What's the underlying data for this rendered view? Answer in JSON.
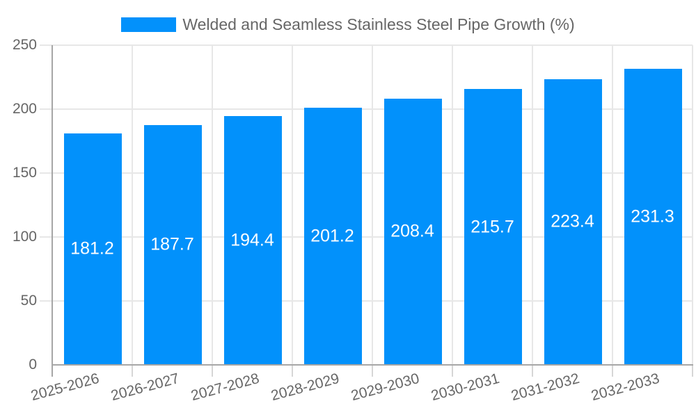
{
  "legend": {
    "label": "Welded and Seamless Stainless Steel Pipe Growth (%)"
  },
  "chart_data": {
    "type": "bar",
    "title": "Welded and Seamless Stainless Steel Pipe Growth (%)",
    "categories": [
      "2025-2026",
      "2026-2027",
      "2027-2028",
      "2028-2029",
      "2029-2030",
      "2030-2031",
      "2031-2032",
      "2032-2033"
    ],
    "values": [
      181.2,
      187.7,
      194.4,
      201.2,
      208.4,
      215.7,
      223.4,
      231.3
    ],
    "value_labels": [
      "181.2",
      "187.7",
      "194.4",
      "201.2",
      "208.4",
      "215.7",
      "223.4",
      "231.3"
    ],
    "xlabel": "",
    "ylabel": "",
    "ylim": [
      0,
      250
    ],
    "yticks": [
      0,
      50,
      100,
      150,
      200,
      250
    ],
    "grid": true,
    "legend_position": "top-center",
    "value_label_position": "bar-center"
  },
  "colors": {
    "bar": "#0291fb",
    "grid_line": "#e7e7e7",
    "tick_mark": "#d6d6d6",
    "axis_line": "#a6a6a6",
    "tick_label": "#666666",
    "legend_text": "#666666",
    "value_label_text": "#ffffff",
    "background": "#ffffff"
  }
}
